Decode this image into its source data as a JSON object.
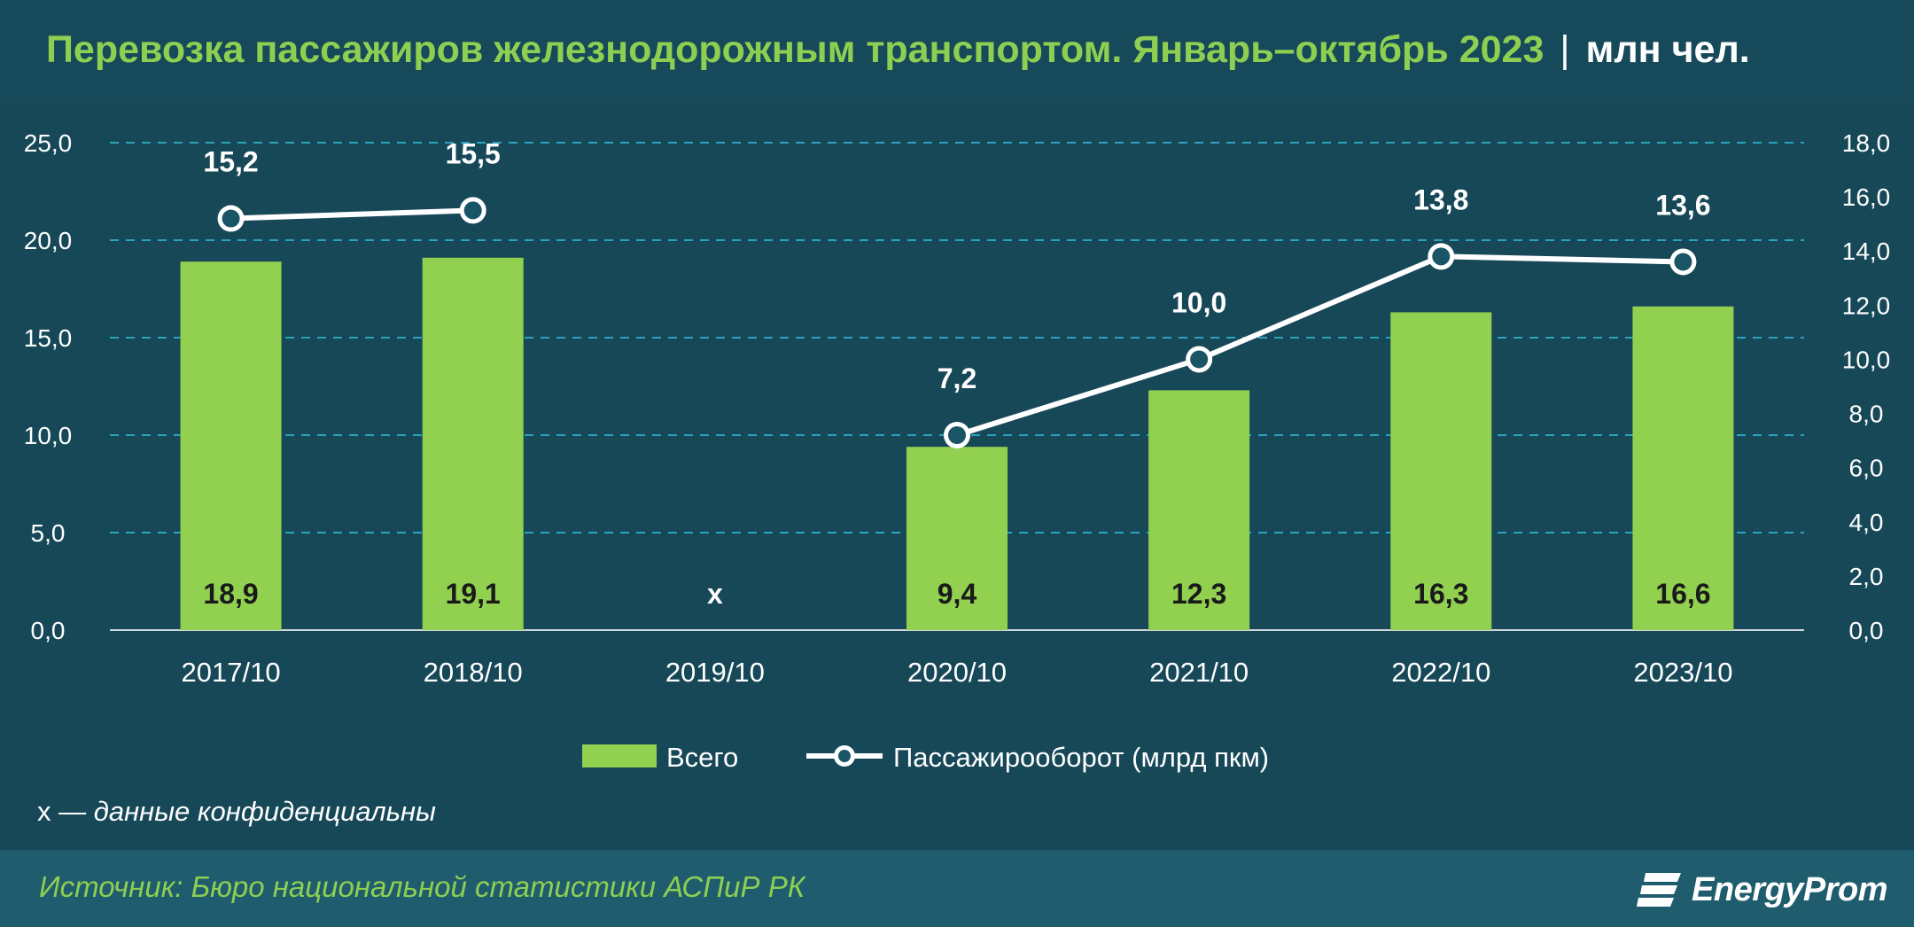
{
  "header": {
    "title": "Перевозка пассажиров железнодорожным транспортом. Январь–октябрь 2023",
    "separator": "|",
    "unit": "млн чел."
  },
  "note": {
    "symbol": "x",
    "text": "— данные конфиденциальны"
  },
  "footer": {
    "source": "Источник: Бюро национальной статистики АСПиР РК",
    "logo_text": "EnergyProm"
  },
  "colors": {
    "bar": "#92d050",
    "line": "#ffffff",
    "grid": "#2ba3bd",
    "text": "#ffffff",
    "accent": "#8ecf52"
  },
  "chart_data": {
    "type": "bar",
    "categories": [
      "2017/10",
      "2018/10",
      "2019/10",
      "2020/10",
      "2021/10",
      "2022/10",
      "2023/10"
    ],
    "series": [
      {
        "name": "Всего",
        "type": "bar",
        "axis": "left",
        "values": [
          18.9,
          19.1,
          null,
          9.4,
          12.3,
          16.3,
          16.6
        ],
        "labels": [
          "18,9",
          "19,1",
          "x",
          "9,4",
          "12,3",
          "16,3",
          "16,6"
        ]
      },
      {
        "name": "Пассажирооборот (млрд пкм)",
        "type": "line",
        "axis": "right",
        "values": [
          15.2,
          15.5,
          null,
          7.2,
          10.0,
          13.8,
          13.6
        ],
        "labels": [
          "15,2",
          "15,5",
          "",
          "7,2",
          "10,0",
          "13,8",
          "13,6"
        ]
      }
    ],
    "ylim_left": [
      0,
      25
    ],
    "yticks_left": [
      "0,0",
      "5,0",
      "10,0",
      "15,0",
      "20,0",
      "25,0"
    ],
    "ylim_right": [
      0,
      18
    ],
    "yticks_right": [
      "0,0",
      "2,0",
      "4,0",
      "6,0",
      "8,0",
      "10,0",
      "12,0",
      "14,0",
      "16,0",
      "18,0"
    ],
    "grid": true,
    "legend": "bottom-center"
  }
}
